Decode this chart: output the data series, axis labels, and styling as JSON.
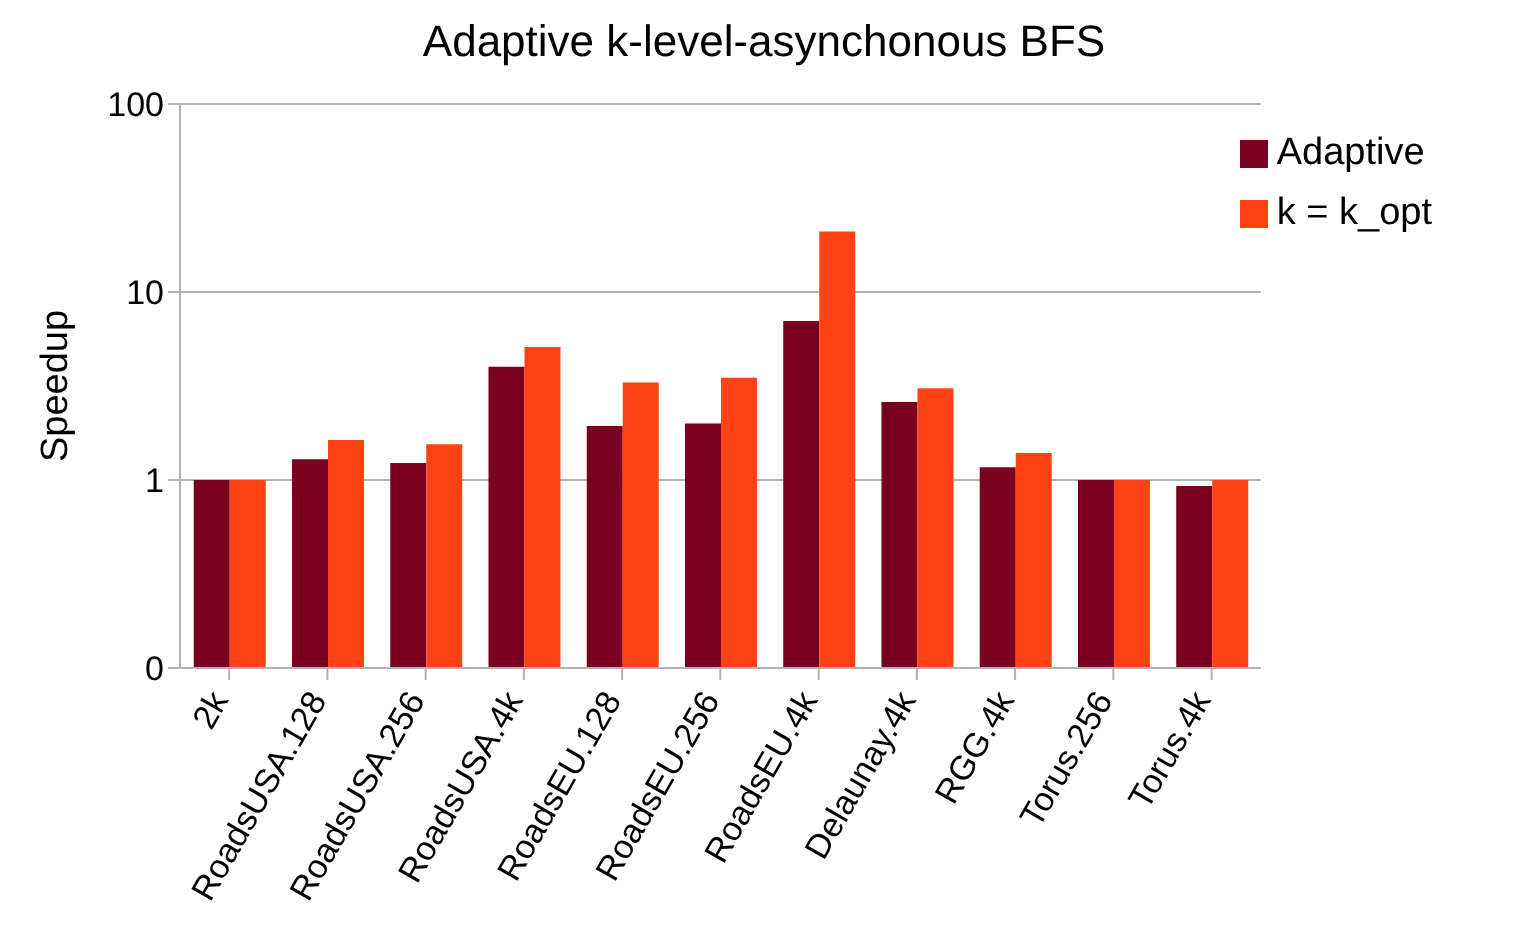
{
  "chart_data": {
    "type": "bar",
    "title": "Adaptive k-level-asynchonous BFS",
    "ylabel": "Speedup",
    "categories": [
      "2k",
      "RoadsUSA.128",
      "RoadsUSA.256",
      "RoadsUSA.4k",
      "RoadsEU.128",
      "RoadsEU.256",
      "RoadsEU.4k",
      "Delaunay.4k",
      "RGG.4k",
      "Torus.256",
      "Torus.4k"
    ],
    "series": [
      {
        "name": "Adaptive",
        "color": "#7b0020",
        "values": [
          1,
          1.29,
          1.23,
          4.0,
          1.94,
          2.0,
          7.0,
          2.6,
          1.17,
          1,
          0.93
        ]
      },
      {
        "name": "k = k_opt",
        "color": "#ff4213",
        "values": [
          1,
          1.63,
          1.55,
          5.1,
          3.3,
          3.5,
          21,
          3.08,
          1.39,
          1,
          1
        ]
      }
    ],
    "log": "y",
    "ylim": [
      0.1,
      100
    ],
    "yticks": [
      {
        "value": 0.1,
        "label": "0"
      },
      1,
      10,
      100
    ],
    "grid": "y",
    "legend": "top right"
  }
}
